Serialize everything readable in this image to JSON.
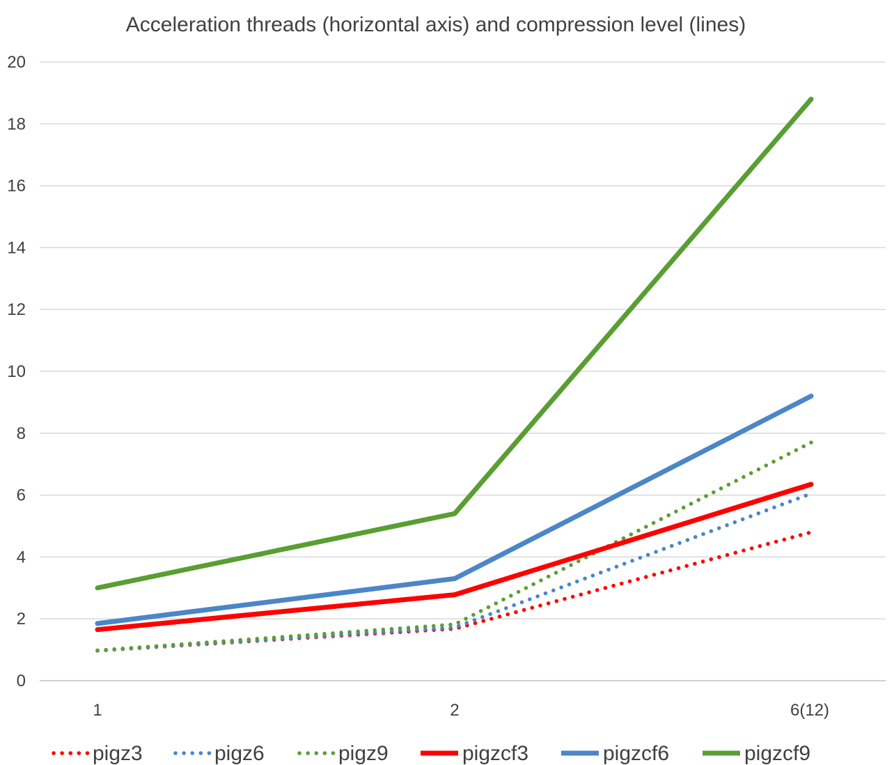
{
  "chart_data": {
    "type": "line",
    "title": "Acceleration threads (horizontal axis) and compression level (lines)",
    "xlabel": "",
    "ylabel": "",
    "categories": [
      "1",
      "2",
      "6(12)"
    ],
    "ylim": [
      0,
      20
    ],
    "yticks": [
      0,
      2,
      4,
      6,
      8,
      10,
      12,
      14,
      16,
      18,
      20
    ],
    "grid": true,
    "legend": "bottom",
    "series": [
      {
        "name": "pigz3",
        "values": [
          0.97,
          1.68,
          4.8
        ],
        "color": "#ff0000",
        "style": "dotted"
      },
      {
        "name": "pigz6",
        "values": [
          0.97,
          1.72,
          6.05
        ],
        "color": "#4a86c8",
        "style": "dotted"
      },
      {
        "name": "pigz9",
        "values": [
          0.98,
          1.82,
          7.7
        ],
        "color": "#5a9e33",
        "style": "dotted"
      },
      {
        "name": "pigzcf3",
        "values": [
          1.65,
          2.78,
          6.35
        ],
        "color": "#ff0000",
        "style": "solid"
      },
      {
        "name": "pigzcf6",
        "values": [
          1.85,
          3.3,
          9.2
        ],
        "color": "#4a86c8",
        "style": "solid"
      },
      {
        "name": "pigzcf9",
        "values": [
          3.0,
          5.4,
          18.8
        ],
        "color": "#5a9e33",
        "style": "solid"
      }
    ]
  }
}
